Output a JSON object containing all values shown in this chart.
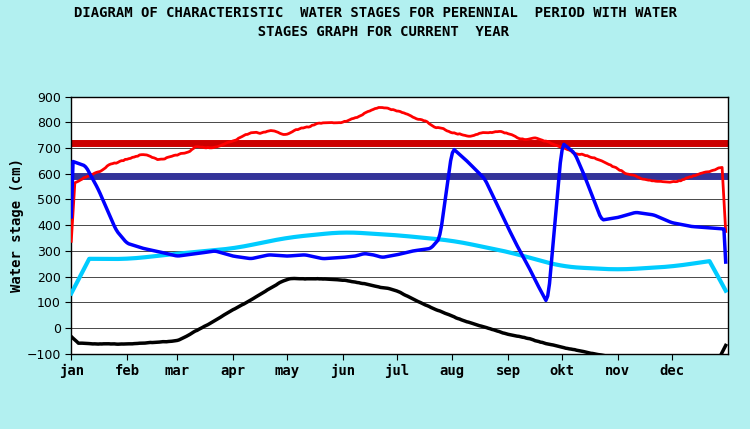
{
  "title": "DIAGRAM OF CHARACTERISTIC  WATER STAGES FOR PERENNIAL  PERIOD WITH WATER\n  STAGES GRAPH FOR CURRENT  YEAR",
  "ylabel": "Water stage (cm)",
  "xlabel_ticks": [
    "jan",
    "feb",
    "mar",
    "apr",
    "may",
    "jun",
    "jul",
    "aug",
    "sep",
    "okt",
    "nov",
    "dec"
  ],
  "ylim": [
    -100,
    900
  ],
  "yticks": [
    -100,
    0,
    100,
    200,
    300,
    400,
    500,
    600,
    700,
    800,
    900
  ],
  "background_color": "#b2f0f0",
  "plot_bg_color": "#ffffff",
  "first_flood_alert": 590,
  "second_flood_alert": 720,
  "colors": {
    "envelope_min": "#000000",
    "average": "#00ccff",
    "envelope_max": "#ff0000",
    "year2024": "#0000ff",
    "first_flood": "#333399",
    "second_flood": "#cc0000"
  },
  "linewidths": {
    "envelope_min": 2.5,
    "average": 3.0,
    "envelope_max": 2.0,
    "year2024": 2.5,
    "first_flood": 5.0,
    "second_flood": 5.0
  },
  "month_starts": [
    0,
    31,
    59,
    90,
    120,
    151,
    181,
    212,
    243,
    273,
    304,
    334
  ]
}
